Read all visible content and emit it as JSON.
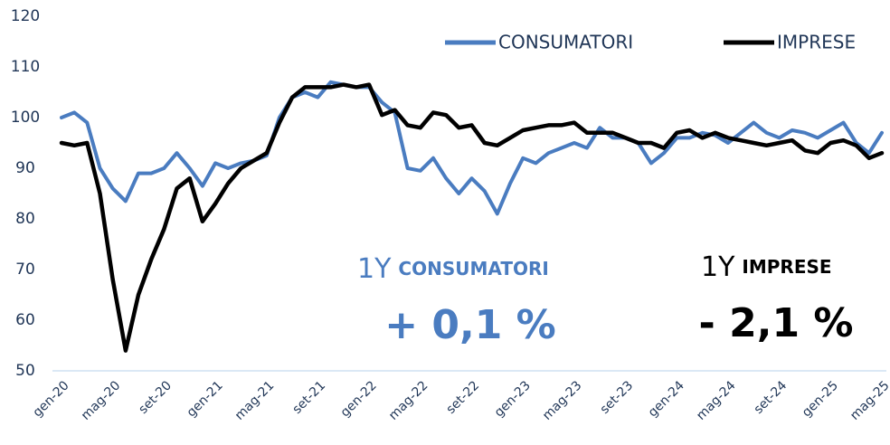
{
  "chart_data": {
    "type": "line",
    "categories": [
      "gen-20",
      null,
      null,
      null,
      "mag-20",
      null,
      null,
      null,
      "set-20",
      null,
      null,
      null,
      "gen-21",
      null,
      null,
      null,
      "mag-21",
      null,
      null,
      null,
      "set-21",
      null,
      null,
      null,
      "gen-22",
      null,
      null,
      null,
      "mag-22",
      null,
      null,
      null,
      "set-22",
      null,
      null,
      null,
      "gen-23",
      null,
      null,
      null,
      "mag-23",
      null,
      null,
      null,
      "set-23",
      null,
      null,
      null,
      "gen-24",
      null,
      null,
      null,
      "mag-24",
      null,
      null,
      null,
      "set-24",
      null,
      null,
      null,
      "gen-25",
      null,
      null,
      null,
      "mag-25"
    ],
    "series": [
      {
        "name": "CONSUMATORI",
        "color": "#4a7cc0",
        "values": [
          100,
          101,
          99,
          90,
          86,
          83.5,
          89,
          89,
          90,
          93,
          90,
          86.5,
          91,
          90,
          91,
          91.5,
          92.5,
          100,
          104,
          105,
          104,
          107,
          106.5,
          106,
          106,
          103,
          101,
          90,
          89.5,
          92,
          88,
          85,
          88,
          85.5,
          81,
          87,
          92,
          91,
          93,
          94,
          95,
          94,
          98,
          96,
          96,
          95,
          91,
          93,
          96,
          96,
          97,
          96.5,
          95,
          97,
          99,
          97,
          96,
          97.5,
          97,
          96,
          97.5,
          99,
          95,
          93,
          97
        ]
      },
      {
        "name": "IMPRESE",
        "color": "#000000",
        "values": [
          95,
          94.5,
          95,
          85,
          68,
          54,
          65,
          72,
          78,
          86,
          88,
          79.5,
          83,
          87,
          90,
          91.5,
          93,
          99,
          104,
          106,
          106,
          106,
          106.5,
          106,
          106.5,
          100.5,
          101.5,
          98.5,
          98,
          101,
          100.5,
          98,
          98.5,
          95,
          94.5,
          96,
          97.5,
          98,
          98.5,
          98.5,
          99,
          97,
          97,
          97,
          96,
          95,
          95,
          94,
          97,
          97.5,
          96,
          97,
          96,
          95.5,
          95,
          94.5,
          95,
          95.5,
          93.5,
          93,
          95,
          95.5,
          94.5,
          92,
          93
        ]
      }
    ],
    "ylim": [
      50,
      120
    ],
    "yticks": [
      50,
      60,
      70,
      80,
      90,
      100,
      110,
      120
    ],
    "legend": "top-right",
    "annotations": [
      {
        "period": "1Y",
        "label": "CONSUMATORI",
        "change": "+ 0,1 %"
      },
      {
        "period": "1Y",
        "label": "IMPRESE",
        "change": "- 2,1 %"
      }
    ]
  }
}
